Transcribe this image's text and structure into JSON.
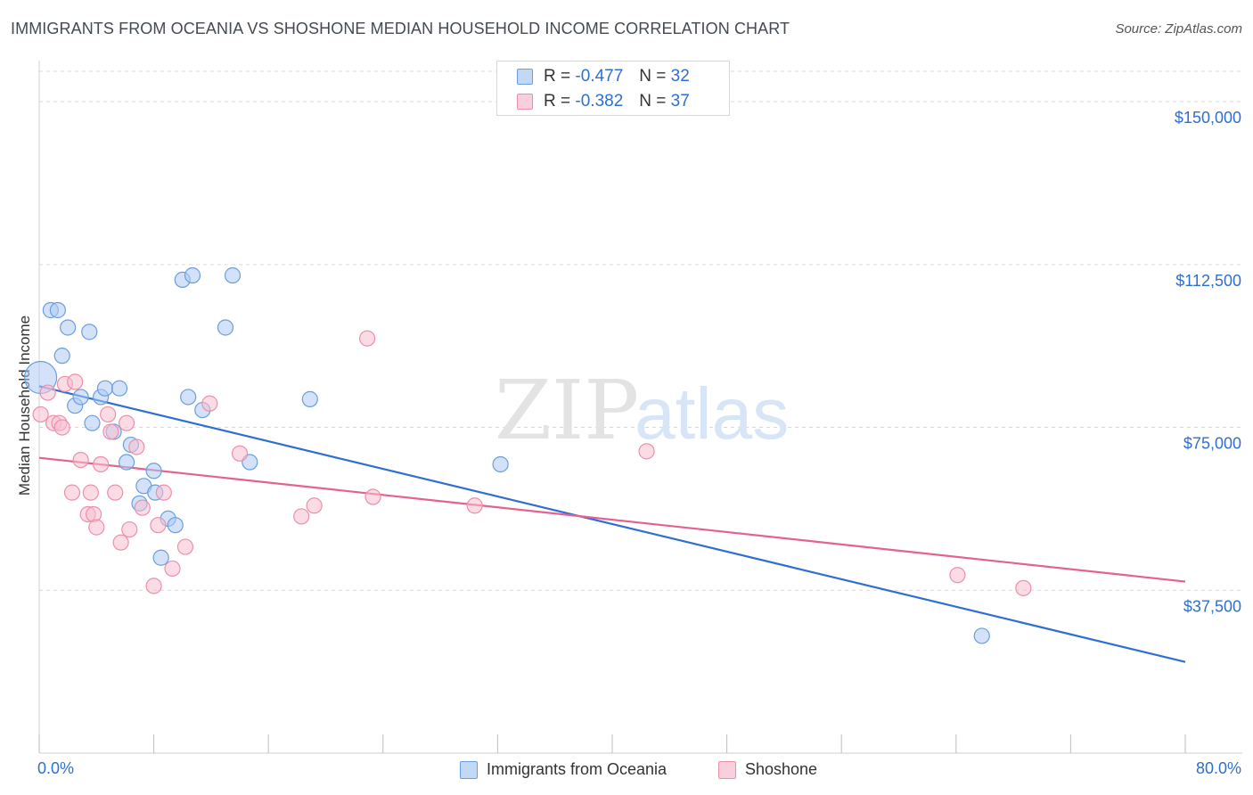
{
  "header": {
    "title": "IMMIGRANTS FROM OCEANIA VS SHOSHONE MEDIAN HOUSEHOLD INCOME CORRELATION CHART",
    "source": "Source: ZipAtlas.com"
  },
  "watermark": {
    "zip": "ZIP",
    "atlas": "atlas"
  },
  "legend": {
    "r_label": "R =",
    "n_label": "N =",
    "rows": [
      {
        "r": "-0.477",
        "n": "32"
      },
      {
        "r": "-0.382",
        "n": "37"
      }
    ]
  },
  "bottom_legend": [
    "Immigrants from Oceania",
    "Shoshone"
  ],
  "x_axis_labels": {
    "min": "0.0%",
    "max": "80.0%"
  },
  "y_axis_labels": [
    "$150,000",
    "$112,500",
    "$75,000",
    "$37,500"
  ],
  "colors": {
    "blue_fill": "#aecbf2",
    "blue_stroke": "#6a9ee0",
    "blue_line": "#2e6fd1",
    "pink_fill": "#f7bfd0",
    "pink_stroke": "#ec8fab",
    "pink_line": "#e4628d",
    "tick_text": "#2f6fd0",
    "grid": "#d9d9d9"
  },
  "chart_data": {
    "type": "scatter",
    "title": "IMMIGRANTS FROM OCEANIA VS SHOSHONE MEDIAN HOUSEHOLD INCOME CORRELATION CHART",
    "xlabel": "",
    "ylabel": "Median Household Income",
    "xlim": [
      0,
      80
    ],
    "ylim": [
      0,
      157000
    ],
    "y_ticks": [
      37500,
      75000,
      112500,
      150000
    ],
    "x_unit": "%",
    "grid": true,
    "legend_position": "top-center",
    "series": [
      {
        "name": "Immigrants from Oceania",
        "color": "#6a9ee0",
        "r": -0.477,
        "n": 32,
        "trend": {
          "x": [
            0,
            80
          ],
          "y": [
            84500,
            21000
          ]
        },
        "points": [
          {
            "x": 0.1,
            "y": 86500,
            "big": true
          },
          {
            "x": 0.8,
            "y": 102000
          },
          {
            "x": 1.3,
            "y": 102000
          },
          {
            "x": 1.6,
            "y": 91500
          },
          {
            "x": 2.0,
            "y": 98000
          },
          {
            "x": 2.5,
            "y": 80000
          },
          {
            "x": 2.9,
            "y": 82000
          },
          {
            "x": 3.5,
            "y": 97000
          },
          {
            "x": 3.7,
            "y": 76000
          },
          {
            "x": 4.3,
            "y": 82000
          },
          {
            "x": 4.6,
            "y": 84000
          },
          {
            "x": 5.2,
            "y": 74000
          },
          {
            "x": 5.6,
            "y": 84000
          },
          {
            "x": 6.1,
            "y": 67000
          },
          {
            "x": 6.4,
            "y": 71000
          },
          {
            "x": 7.0,
            "y": 57500
          },
          {
            "x": 7.3,
            "y": 61500
          },
          {
            "x": 8.0,
            "y": 65000
          },
          {
            "x": 8.1,
            "y": 60000
          },
          {
            "x": 8.5,
            "y": 45000
          },
          {
            "x": 9.0,
            "y": 54000
          },
          {
            "x": 9.5,
            "y": 52500
          },
          {
            "x": 10.0,
            "y": 109000
          },
          {
            "x": 10.4,
            "y": 82000
          },
          {
            "x": 10.7,
            "y": 110000
          },
          {
            "x": 11.4,
            "y": 79000
          },
          {
            "x": 13.0,
            "y": 98000
          },
          {
            "x": 13.5,
            "y": 110000
          },
          {
            "x": 14.7,
            "y": 67000
          },
          {
            "x": 18.9,
            "y": 81500
          },
          {
            "x": 32.2,
            "y": 66500
          },
          {
            "x": 65.8,
            "y": 27000
          }
        ]
      },
      {
        "name": "Shoshone",
        "color": "#ec8fab",
        "r": -0.382,
        "n": 37,
        "trend": {
          "x": [
            0,
            80
          ],
          "y": [
            68000,
            39500
          ]
        },
        "points": [
          {
            "x": 0.1,
            "y": 78000
          },
          {
            "x": 0.6,
            "y": 83000
          },
          {
            "x": 1.0,
            "y": 76000
          },
          {
            "x": 1.4,
            "y": 76000
          },
          {
            "x": 1.6,
            "y": 75000
          },
          {
            "x": 1.8,
            "y": 85000
          },
          {
            "x": 2.3,
            "y": 60000
          },
          {
            "x": 2.5,
            "y": 85500
          },
          {
            "x": 2.9,
            "y": 67500
          },
          {
            "x": 3.4,
            "y": 55000
          },
          {
            "x": 3.6,
            "y": 60000
          },
          {
            "x": 3.8,
            "y": 55000
          },
          {
            "x": 4.0,
            "y": 52000
          },
          {
            "x": 4.3,
            "y": 66500
          },
          {
            "x": 4.8,
            "y": 78000
          },
          {
            "x": 5.0,
            "y": 74000
          },
          {
            "x": 5.3,
            "y": 60000
          },
          {
            "x": 5.7,
            "y": 48500
          },
          {
            "x": 6.1,
            "y": 76000
          },
          {
            "x": 6.3,
            "y": 51500
          },
          {
            "x": 6.8,
            "y": 70500
          },
          {
            "x": 7.2,
            "y": 56500
          },
          {
            "x": 8.0,
            "y": 38500
          },
          {
            "x": 8.3,
            "y": 52500
          },
          {
            "x": 8.7,
            "y": 60000
          },
          {
            "x": 9.3,
            "y": 42500
          },
          {
            "x": 10.2,
            "y": 47500
          },
          {
            "x": 11.9,
            "y": 80500
          },
          {
            "x": 14.0,
            "y": 69000
          },
          {
            "x": 18.3,
            "y": 54500
          },
          {
            "x": 19.2,
            "y": 57000
          },
          {
            "x": 22.9,
            "y": 95500
          },
          {
            "x": 23.3,
            "y": 59000
          },
          {
            "x": 30.4,
            "y": 57000
          },
          {
            "x": 42.4,
            "y": 69500
          },
          {
            "x": 64.1,
            "y": 41000
          },
          {
            "x": 68.7,
            "y": 38000
          }
        ]
      }
    ]
  }
}
